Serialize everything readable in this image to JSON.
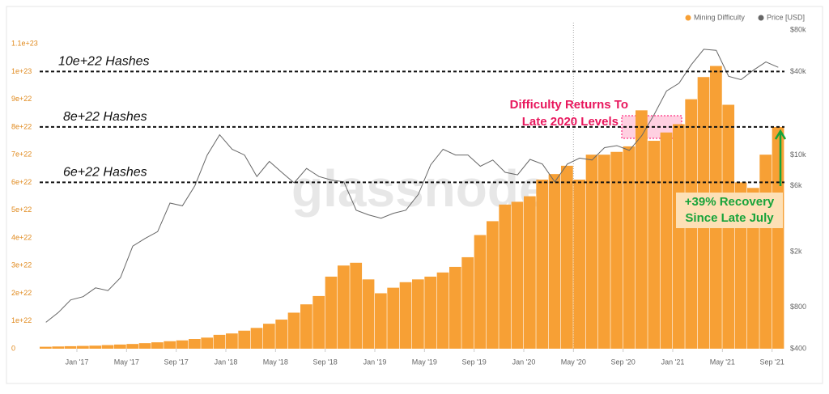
{
  "chart_data": {
    "type": "bar_line",
    "watermark": "glassnode",
    "x": [
      "2016-10",
      "2016-11",
      "2016-12",
      "2017-01",
      "2017-02",
      "2017-03",
      "2017-04",
      "2017-05",
      "2017-06",
      "2017-07",
      "2017-08",
      "2017-09",
      "2017-10",
      "2017-11",
      "2017-12",
      "2018-01",
      "2018-02",
      "2018-03",
      "2018-04",
      "2018-05",
      "2018-06",
      "2018-07",
      "2018-08",
      "2018-09",
      "2018-10",
      "2018-11",
      "2018-12",
      "2019-01",
      "2019-02",
      "2019-03",
      "2019-04",
      "2019-05",
      "2019-06",
      "2019-07",
      "2019-08",
      "2019-09",
      "2019-10",
      "2019-11",
      "2019-12",
      "2020-01",
      "2020-02",
      "2020-03",
      "2020-04",
      "2020-05",
      "2020-06",
      "2020-07",
      "2020-08",
      "2020-09",
      "2020-10",
      "2020-11",
      "2020-12",
      "2021-01",
      "2021-02",
      "2021-03",
      "2021-04",
      "2021-05",
      "2021-06",
      "2021-07",
      "2021-08",
      "2021-09"
    ],
    "series": [
      {
        "name": "Mining Difficulty",
        "color": "#f7a035",
        "type": "bar",
        "axis": "y",
        "values": [
          7e+20,
          8e+20,
          9e+20,
          1e+21,
          1.1e+21,
          1.3e+21,
          1.5e+21,
          1.7e+21,
          2e+21,
          2.3e+21,
          2.7e+21,
          3e+21,
          3.5e+21,
          4e+21,
          5e+21,
          5.5e+21,
          6.5e+21,
          7.5e+21,
          9e+21,
          1.05e+22,
          1.3e+22,
          1.6e+22,
          1.9e+22,
          2.6e+22,
          3e+22,
          3.1e+22,
          2.5e+22,
          2e+22,
          2.2e+22,
          2.4e+22,
          2.5e+22,
          2.6e+22,
          2.75e+22,
          2.95e+22,
          3.3e+22,
          4.1e+22,
          4.6e+22,
          5.2e+22,
          5.3e+22,
          5.5e+22,
          6.1e+22,
          6.3e+22,
          6.6e+22,
          6.1e+22,
          7e+22,
          7e+22,
          7.1e+22,
          7.3e+22,
          8.6e+22,
          7.5e+22,
          7.8e+22,
          8.1e+22,
          9e+22,
          9.8e+22,
          1.02e+23,
          8.8e+22,
          6e+22,
          5.8e+22,
          7e+22,
          8e+22
        ]
      },
      {
        "name": "Price [USD]",
        "color": "#666666",
        "type": "line",
        "axis": "y2",
        "values": [
          620,
          730,
          900,
          950,
          1100,
          1050,
          1300,
          2200,
          2500,
          2800,
          4500,
          4300,
          6000,
          10000,
          14000,
          11000,
          10000,
          7000,
          9000,
          7500,
          6300,
          8000,
          7000,
          6600,
          6400,
          4000,
          3700,
          3500,
          3800,
          4000,
          5200,
          8500,
          11000,
          10000,
          10000,
          8300,
          9200,
          7500,
          7200,
          9300,
          8600,
          6400,
          8600,
          9500,
          9200,
          11300,
          11700,
          10800,
          13800,
          19600,
          29000,
          33000,
          45000,
          58000,
          57000,
          37000,
          35000,
          41000,
          47000,
          43000
        ]
      }
    ],
    "xticks": [
      {
        "value": "2017-01",
        "label": "Jan '17"
      },
      {
        "value": "2017-05",
        "label": "May '17"
      },
      {
        "value": "2017-09",
        "label": "Sep '17"
      },
      {
        "value": "2018-01",
        "label": "Jan '18"
      },
      {
        "value": "2018-05",
        "label": "May '18"
      },
      {
        "value": "2018-09",
        "label": "Sep '18"
      },
      {
        "value": "2019-01",
        "label": "Jan '19"
      },
      {
        "value": "2019-05",
        "label": "May '19"
      },
      {
        "value": "2019-09",
        "label": "Sep '19"
      },
      {
        "value": "2020-01",
        "label": "Jan '20"
      },
      {
        "value": "2020-05",
        "label": "May '20"
      },
      {
        "value": "2020-09",
        "label": "Sep '20"
      },
      {
        "value": "2021-01",
        "label": "Jan '21"
      },
      {
        "value": "2021-05",
        "label": "May '21"
      },
      {
        "value": "2021-09",
        "label": "Sep '21"
      }
    ],
    "ylim": [
      0,
      1.15e+23
    ],
    "yticks": [
      0,
      {
        "value": 1e+22,
        "label": "1e+22"
      },
      {
        "value": 2e+22,
        "label": "2e+22"
      },
      {
        "value": 3e+22,
        "label": "3e+22"
      },
      {
        "value": 4e+22,
        "label": "4e+22"
      },
      {
        "value": 5e+22,
        "label": "5e+22"
      },
      {
        "value": 6e+22,
        "label": "6e+22"
      },
      {
        "value": 7e+22,
        "label": "7e+22"
      },
      {
        "value": 8e+22,
        "label": "8e+22"
      },
      {
        "value": 9e+22,
        "label": "9e+22"
      },
      {
        "value": 1e+23,
        "label": "1e+23"
      },
      {
        "value": 1.1e+23,
        "label": "1.1e+23"
      }
    ],
    "y2lim": [
      400,
      80000
    ],
    "y2log": true,
    "y2ticks": [
      {
        "value": 400,
        "label": "$400"
      },
      {
        "value": 800,
        "label": "$800"
      },
      {
        "value": 2000,
        "label": "$2k"
      },
      {
        "value": 6000,
        "label": "$6k"
      },
      {
        "value": 10000,
        "label": "$10k"
      },
      {
        "value": 40000,
        "label": "$40k"
      },
      {
        "value": 80000,
        "label": "$80k"
      }
    ],
    "marker_x": "2020-05",
    "reference_lines": [
      {
        "value": 1e+23,
        "label": "10e+22 Hashes"
      },
      {
        "value": 8e+22,
        "label": "8e+22 Hashes"
      },
      {
        "value": 6e+22,
        "label": "6e+22 Hashes"
      }
    ],
    "annotations": [
      {
        "lines": [
          "Difficulty Returns To",
          "Late 2020 Levels"
        ]
      },
      {
        "lines": [
          "+39% Recovery",
          "Since Late July"
        ]
      }
    ]
  }
}
